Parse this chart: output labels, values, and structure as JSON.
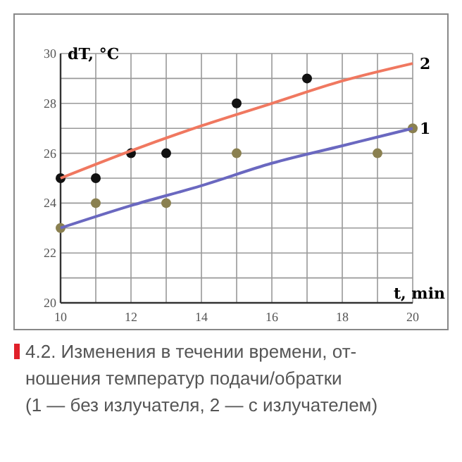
{
  "chart_data": {
    "type": "scatter",
    "xlabel": "t, min",
    "ylabel": "dT, °C",
    "annotations": [
      "4.2. Изменения в течении времени, от-\nношения температур подачи/обратки\n(1 — без излучателя, 2 — с излучателем)"
    ],
    "xlim": [
      10,
      20
    ],
    "xticks": [
      10,
      {
        "value": 11,
        "label": null
      },
      12,
      {
        "value": 13,
        "label": null
      },
      14,
      {
        "value": 15,
        "label": null
      },
      16,
      {
        "value": 17,
        "label": null
      },
      18,
      {
        "value": 19,
        "label": null
      },
      20
    ],
    "ylim": [
      20,
      30
    ],
    "yticks": [
      20,
      {
        "value": 21,
        "label": null
      },
      22,
      {
        "value": 23,
        "label": null
      },
      24,
      {
        "value": 25,
        "label": null
      },
      26,
      {
        "value": 27,
        "label": null
      },
      28,
      {
        "value": 29,
        "label": null
      },
      30
    ],
    "grid": true,
    "series": [
      {
        "marker": "circle",
        "color": "#8a8050",
        "x": [
          10,
          11,
          13,
          15,
          19,
          20
        ],
        "values": [
          23,
          24,
          24,
          26,
          26,
          27
        ]
      },
      {
        "marker": "circle",
        "color": "#111111",
        "x": [
          10,
          11,
          12,
          13,
          15,
          17
        ],
        "values": [
          25,
          25,
          26,
          26,
          28,
          29
        ]
      },
      {
        "type": "line",
        "marker": "none",
        "name": "1",
        "color": "#6a68c0",
        "x": [
          10,
          12,
          14,
          16,
          18,
          20
        ],
        "values": [
          23,
          23.9,
          24.7,
          25.6,
          26.3,
          27
        ]
      },
      {
        "type": "line",
        "marker": "none",
        "name": "2",
        "color": "#f07860",
        "x": [
          10,
          12,
          14,
          16,
          18,
          20
        ],
        "values": [
          25,
          26.1,
          27.1,
          28,
          28.9,
          29.6
        ]
      }
    ]
  }
}
